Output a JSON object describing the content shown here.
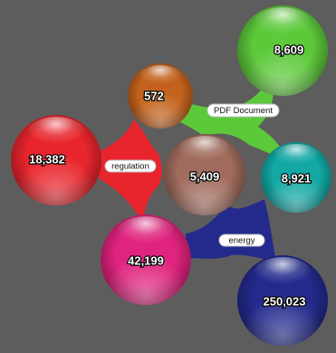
{
  "connectors": [
    {
      "label": "PDF Document",
      "color": "#5cc93a"
    },
    {
      "label": "regulation",
      "color": "#e8252c"
    },
    {
      "label": "energy",
      "color": "#232a8c"
    }
  ],
  "bubbles": [
    {
      "value": "8,609",
      "color": "#5cc93a"
    },
    {
      "value": "572",
      "color": "#c2621c"
    },
    {
      "value": "18,382",
      "color": "#e8252c"
    },
    {
      "value": "5,409",
      "color": "#a06b5c"
    },
    {
      "value": "8,921",
      "color": "#13a8a4"
    },
    {
      "value": "42,199",
      "color": "#e0237e"
    },
    {
      "value": "250,023",
      "color": "#232a8c"
    }
  ]
}
